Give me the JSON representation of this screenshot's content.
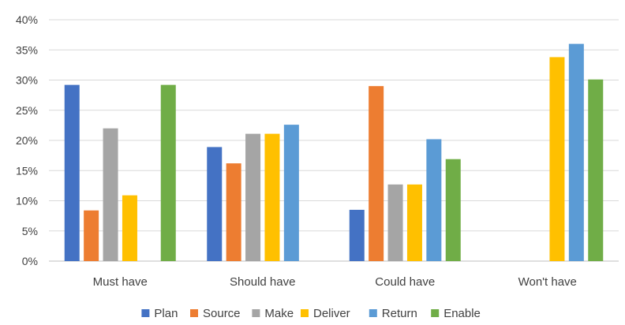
{
  "chart_data": {
    "type": "bar",
    "title": "",
    "xlabel": "",
    "ylabel": "",
    "ylim": [
      0,
      40
    ],
    "y_ticks": [
      "0%",
      "5%",
      "10%",
      "15%",
      "20%",
      "25%",
      "30%",
      "35%",
      "40%"
    ],
    "y_tick_values": [
      0,
      5,
      10,
      15,
      20,
      25,
      30,
      35,
      40
    ],
    "grid": true,
    "legend_position": "bottom",
    "categories": [
      "Must have",
      "Should have",
      "Could have",
      "Won't have"
    ],
    "series": [
      {
        "name": "Plan",
        "color": "#4472C4",
        "values": [
          29.2,
          18.9,
          8.5,
          0
        ]
      },
      {
        "name": "Source",
        "color": "#ED7D31",
        "values": [
          8.4,
          16.2,
          29.0,
          0
        ]
      },
      {
        "name": "Make",
        "color": "#A5A5A5",
        "values": [
          22.0,
          21.1,
          12.7,
          0
        ]
      },
      {
        "name": "Deliver",
        "color": "#FFC000",
        "values": [
          10.9,
          21.1,
          12.7,
          33.8
        ]
      },
      {
        "name": "Return",
        "color": "#5B9BD5",
        "values": [
          0,
          22.6,
          20.2,
          36.0
        ]
      },
      {
        "name": "Enable",
        "color": "#70AD47",
        "values": [
          29.2,
          0,
          16.9,
          30.1
        ]
      }
    ]
  }
}
